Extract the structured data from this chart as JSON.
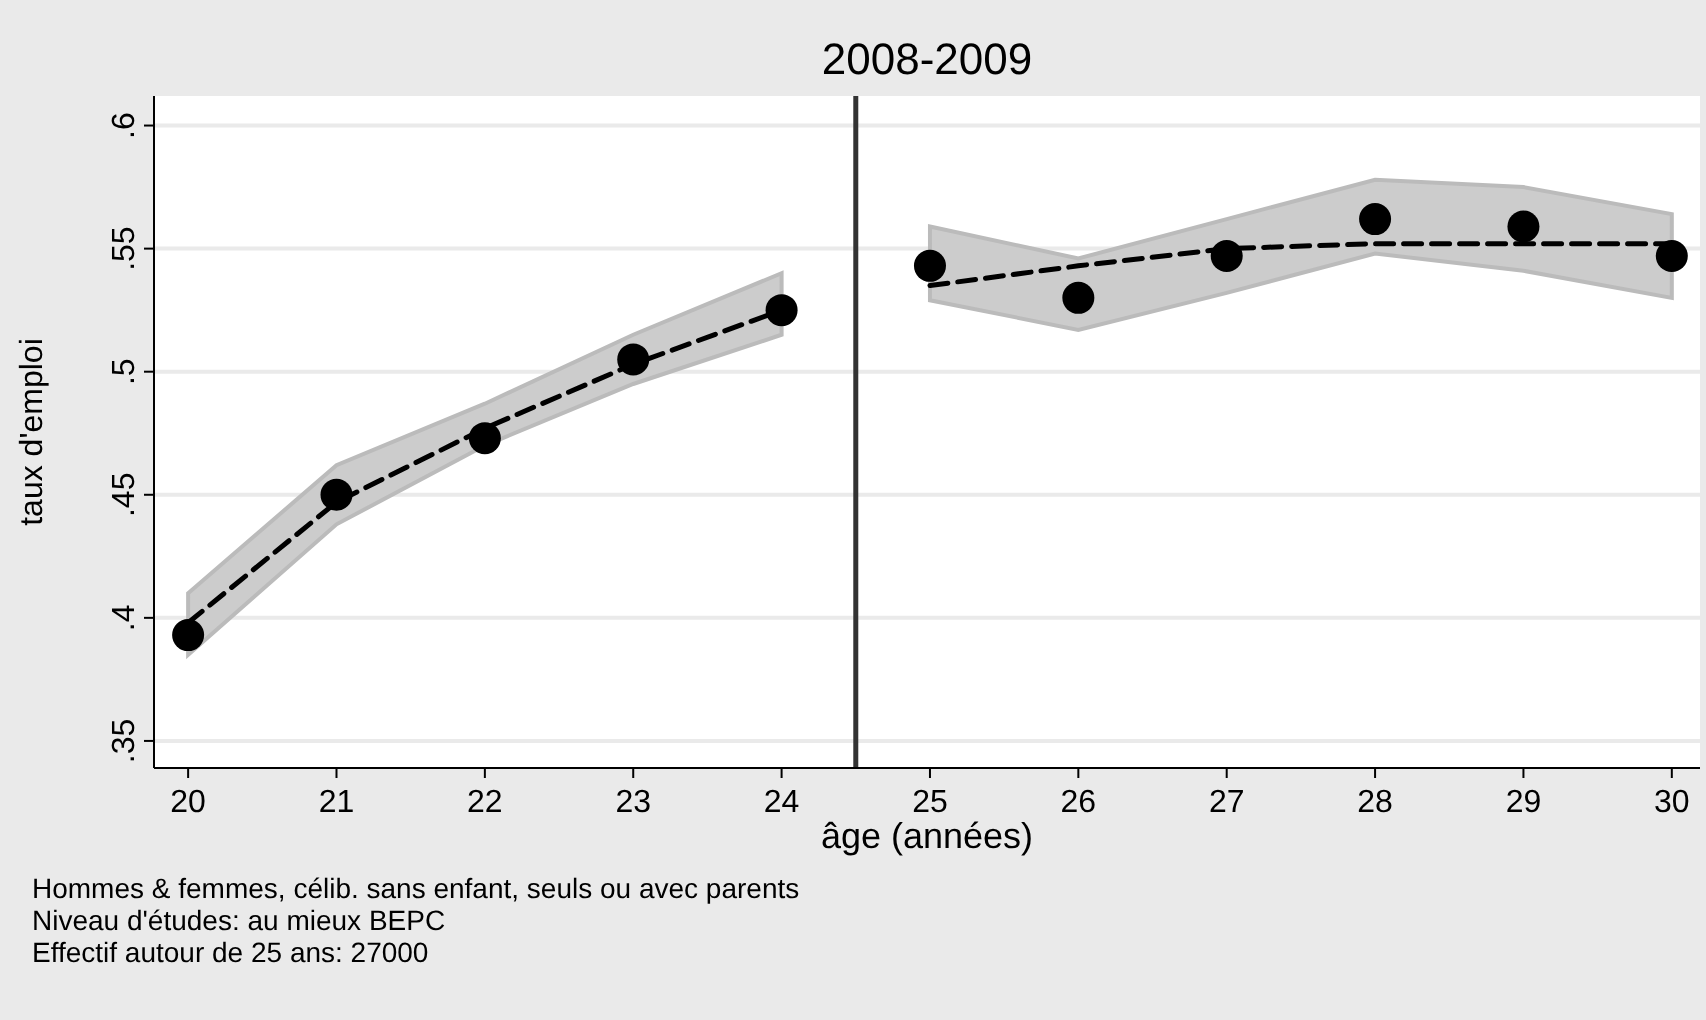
{
  "chart_data": {
    "type": "scatter",
    "title": "2008-2009",
    "xlabel": "âge (années)",
    "ylabel": "taux d'emploi",
    "x": [
      20,
      21,
      22,
      23,
      24,
      25,
      26,
      27,
      28,
      29,
      30
    ],
    "series": [
      {
        "type": "line",
        "color": "#000000",
        "line_style": "dashed",
        "marker": "none",
        "x": [
          20,
          21,
          22,
          23,
          24
        ],
        "values": [
          0.398,
          0.447,
          0.477,
          0.503,
          0.525
        ],
        "lower": [
          0.385,
          0.438,
          0.47,
          0.495,
          0.515
        ],
        "upper": [
          0.41,
          0.462,
          0.487,
          0.515,
          0.54
        ]
      },
      {
        "type": "line",
        "color": "#000000",
        "line_style": "dashed",
        "marker": "none",
        "x": [
          25,
          26,
          27,
          28,
          29,
          30
        ],
        "values": [
          0.535,
          0.543,
          0.55,
          0.552,
          0.552,
          0.552
        ],
        "lower": [
          0.529,
          0.517,
          0.532,
          0.548,
          0.541,
          0.53
        ],
        "upper": [
          0.559,
          0.546,
          0.562,
          0.578,
          0.575,
          0.564
        ]
      },
      {
        "color": "#000000",
        "marker": "circle",
        "values": [
          0.393,
          0.45,
          0.473,
          0.505,
          0.525,
          0.543,
          0.53,
          0.547,
          0.562,
          0.559,
          0.547
        ]
      }
    ],
    "xlim": [
      19.77,
      30.19
    ],
    "xticks": [
      20,
      21,
      22,
      23,
      24,
      25,
      26,
      27,
      28,
      29,
      30
    ],
    "ylim": [
      0.339,
      0.612
    ],
    "yticks": [
      {
        "value": 0.35,
        "label": ".35"
      },
      {
        "value": 0.4,
        "label": ".4"
      },
      {
        "value": 0.45,
        "label": ".45"
      },
      {
        "value": 0.5,
        "label": ".5"
      },
      {
        "value": 0.55,
        "label": ".55"
      },
      {
        "value": 0.6,
        "label": ".6"
      }
    ],
    "grid": "y",
    "ref_lines": [
      {
        "axis": "x",
        "value": 24.5,
        "color": "#333333"
      }
    ],
    "annotations": [
      "Hommes & femmes,  célib. sans enfant, seuls ou avec parents",
      "Niveau d'études: au mieux BEPC",
      "Effectif autour de 25 ans:  27000"
    ]
  }
}
